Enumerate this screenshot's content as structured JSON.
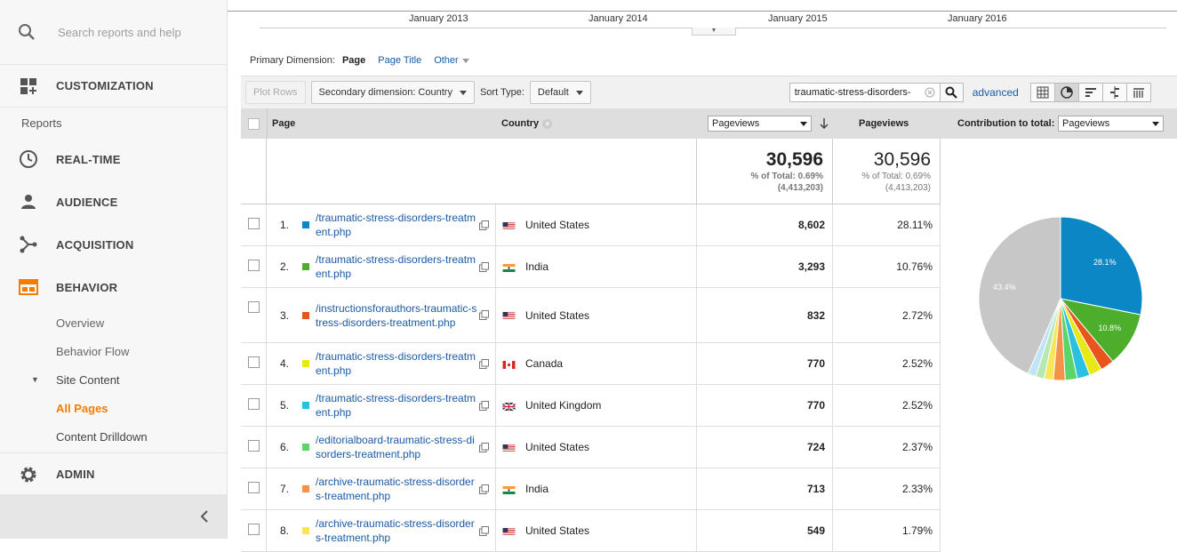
{
  "sidebar": {
    "search_placeholder": "Search reports and help",
    "customization": "CUSTOMIZATION",
    "reports_header": "Reports",
    "items": [
      {
        "label": "REAL-TIME",
        "icon": "clock-icon"
      },
      {
        "label": "AUDIENCE",
        "icon": "person-icon"
      },
      {
        "label": "ACQUISITION",
        "icon": "acquisition-icon"
      },
      {
        "label": "BEHAVIOR",
        "icon": "behavior-icon"
      }
    ],
    "behavior_sub": {
      "overview": "Overview",
      "flow": "Behavior Flow",
      "site_content": "Site Content",
      "all_pages": "All Pages",
      "content_drilldown": "Content Drilldown"
    },
    "admin": "ADMIN",
    "accent_color": "#f57c00"
  },
  "timeline": {
    "labels": [
      "January 2013",
      "January 2014",
      "January 2015",
      "January 2016"
    ]
  },
  "primary_dimension": {
    "label": "Primary Dimension:",
    "current": "Page",
    "options": [
      "Page Title",
      "Other"
    ]
  },
  "toolbar": {
    "plot_rows": "Plot Rows",
    "secondary_dimension": "Secondary dimension: Country",
    "sort_type_label": "Sort Type:",
    "sort_type_value": "Default",
    "search_value": "traumatic-stress-disorders-",
    "advanced": "advanced"
  },
  "table": {
    "headers": {
      "page": "Page",
      "country": "Country",
      "metric_select": "Pageviews",
      "pageviews": "Pageviews",
      "contribution_label": "Contribution to total:",
      "contribution_select": "Pageviews"
    },
    "totals": {
      "value": "30,596",
      "pct_of_total": "% of Total: 0.69%",
      "overall": "(4,413,203)"
    },
    "rows": [
      {
        "num": "1.",
        "page": "/traumatic-stress-disorders-treatment.php",
        "country": "United States",
        "flag": "us",
        "pageviews": "8,602",
        "pct": "28.11%",
        "color": "#0b87c6"
      },
      {
        "num": "2.",
        "page": "/traumatic-stress-disorders-treatment.php",
        "country": "India",
        "flag": "in",
        "pageviews": "3,293",
        "pct": "10.76%",
        "color": "#4cae2b"
      },
      {
        "num": "3.",
        "page": "/instructionsforauthors-traumatic-stress-disorders-treatment.php",
        "country": "United States",
        "flag": "us",
        "pageviews": "832",
        "pct": "2.72%",
        "color": "#e8541c"
      },
      {
        "num": "4.",
        "page": "/traumatic-stress-disorders-treatment.php",
        "country": "Canada",
        "flag": "ca",
        "pageviews": "770",
        "pct": "2.52%",
        "color": "#e8e817"
      },
      {
        "num": "5.",
        "page": "/traumatic-stress-disorders-treatment.php",
        "country": "United Kingdom",
        "flag": "gb",
        "pageviews": "770",
        "pct": "2.52%",
        "color": "#2ac0e0"
      },
      {
        "num": "6.",
        "page": "/editorialboard-traumatic-stress-disorders-treatment.php",
        "country": "United States",
        "flag": "us",
        "pageviews": "724",
        "pct": "2.37%",
        "color": "#5dd46a"
      },
      {
        "num": "7.",
        "page": "/archive-traumatic-stress-disorders-treatment.php",
        "country": "India",
        "flag": "in",
        "pageviews": "713",
        "pct": "2.33%",
        "color": "#f5924a"
      },
      {
        "num": "8.",
        "page": "/archive-traumatic-stress-disorders-treatment.php",
        "country": "United States",
        "flag": "us",
        "pageviews": "549",
        "pct": "1.79%",
        "color": "#f7e65a"
      }
    ]
  },
  "chart_data": {
    "type": "pie",
    "slices": [
      {
        "value": 28.11,
        "color": "#0b87c6",
        "label": "28.1%"
      },
      {
        "value": 10.76,
        "color": "#4cae2b",
        "label": "10.8%"
      },
      {
        "value": 2.72,
        "color": "#e8541c"
      },
      {
        "value": 2.52,
        "color": "#e8e817"
      },
      {
        "value": 2.52,
        "color": "#2ac0e0"
      },
      {
        "value": 2.37,
        "color": "#5dd46a"
      },
      {
        "value": 2.33,
        "color": "#f5924a"
      },
      {
        "value": 1.79,
        "color": "#f7e65a"
      },
      {
        "value": 1.7,
        "color": "#b6e8b4"
      },
      {
        "value": 1.6,
        "color": "#bfe4f5"
      },
      {
        "value": 43.4,
        "color": "#c7c7c7",
        "label": "43.4%"
      }
    ]
  }
}
